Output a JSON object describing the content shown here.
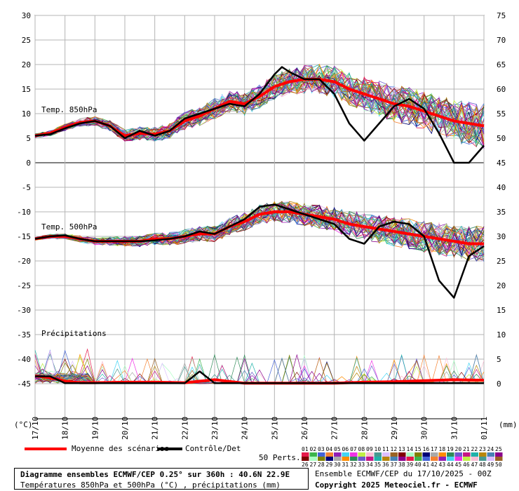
{
  "chart_data": {
    "type": "line",
    "left_axis": {
      "ticks": [
        "30",
        "25",
        "20",
        "15",
        "10",
        "5",
        "0",
        "-5",
        "-10",
        "-15",
        "-20",
        "-25",
        "-30",
        "-35",
        "-40",
        "-45"
      ],
      "unit": "(°C)"
    },
    "right_axis": {
      "ticks": [
        "75",
        "70",
        "65",
        "60",
        "55",
        "50",
        "45",
        "40",
        "35",
        "30",
        "25",
        "20",
        "15",
        "10",
        "5",
        "0"
      ],
      "unit": "(mm)"
    },
    "x_labels": [
      "17/10",
      "18/10",
      "19/10",
      "20/10",
      "21/10",
      "22/10",
      "23/10",
      "24/10",
      "25/10",
      "26/10",
      "27/10",
      "28/10",
      "29/10",
      "30/10",
      "31/10",
      "01/11"
    ],
    "x_days": [
      0,
      1,
      2,
      3,
      4,
      5,
      6,
      7,
      8,
      9,
      10,
      11,
      12,
      13,
      14,
      15
    ],
    "panel_labels": {
      "t850": "Temp. 850hPa",
      "t500": "Temp. 500hPa",
      "precip": "Précipitations"
    },
    "legend": {
      "mean": "Moyenne des scénarios",
      "control": "Contrôle/Det",
      "perts": "50 Perts."
    },
    "pert_numbers_top": [
      "01",
      "02",
      "03",
      "04",
      "05",
      "06",
      "07",
      "08",
      "09",
      "10",
      "11",
      "12",
      "13",
      "14",
      "15",
      "16",
      "17",
      "18",
      "19",
      "20",
      "21",
      "22",
      "23",
      "24",
      "25"
    ],
    "pert_numbers_bottom": [
      "26",
      "27",
      "28",
      "29",
      "30",
      "31",
      "32",
      "33",
      "34",
      "35",
      "36",
      "37",
      "38",
      "39",
      "40",
      "41",
      "42",
      "43",
      "44",
      "45",
      "46",
      "47",
      "48",
      "49",
      "50"
    ],
    "series": [
      {
        "name": "Moyenne des scénarios",
        "panel": "t850",
        "x": [
          0,
          0.5,
          1,
          1.5,
          2,
          2.5,
          3,
          3.5,
          4,
          4.5,
          5,
          5.5,
          6,
          6.5,
          7,
          7.5,
          8,
          8.5,
          9,
          9.5,
          10,
          10.5,
          11,
          11.5,
          12,
          12.5,
          13,
          13.5,
          14,
          14.5,
          15
        ],
        "values": [
          5.5,
          6,
          7.2,
          8.2,
          8.5,
          7.5,
          5.5,
          6,
          5.8,
          6.5,
          8.5,
          9.5,
          11,
          12.5,
          12,
          13.5,
          15.5,
          16.5,
          17,
          17,
          16.5,
          15,
          14,
          13,
          12,
          11.5,
          10.5,
          9.5,
          8.5,
          8,
          7.5
        ]
      },
      {
        "name": "Contrôle/Det",
        "panel": "t850",
        "x": [
          0,
          0.5,
          1,
          1.5,
          2,
          2.5,
          3,
          3.5,
          4,
          4.5,
          5,
          5.5,
          6,
          6.5,
          7,
          7.5,
          8,
          8.25,
          8.5,
          9,
          9.5,
          10,
          10.5,
          11,
          11.5,
          12,
          12.5,
          13,
          13.5,
          14,
          14.5,
          15
        ],
        "values": [
          5.5,
          5.8,
          7,
          8,
          8.5,
          7.5,
          5,
          6.5,
          5.5,
          6.5,
          9,
          10,
          11,
          12,
          11.5,
          14,
          18,
          19.5,
          18.5,
          17,
          17,
          14,
          8,
          4.5,
          8,
          11.5,
          13,
          11,
          6,
          0,
          0,
          3.5
        ]
      },
      {
        "name": "Moyenne des scénarios",
        "panel": "t500",
        "x": [
          0,
          0.5,
          1,
          1.5,
          2,
          2.5,
          3,
          3.5,
          4,
          4.5,
          5,
          5.5,
          6,
          6.5,
          7,
          7.5,
          8,
          8.5,
          9,
          9.5,
          10,
          10.5,
          11,
          11.5,
          12,
          12.5,
          13,
          13.5,
          14,
          14.5,
          15
        ],
        "values": [
          -15.5,
          -15,
          -15,
          -15.5,
          -16,
          -16,
          -16,
          -16,
          -15.5,
          -15.5,
          -15,
          -14.5,
          -14.5,
          -13,
          -12,
          -10.5,
          -10,
          -10,
          -10.5,
          -11,
          -11.5,
          -12.5,
          -13,
          -13.5,
          -14,
          -14.5,
          -15,
          -15.5,
          -16,
          -16.5,
          -16.5
        ]
      },
      {
        "name": "Contrôle/Det",
        "panel": "t500",
        "x": [
          0,
          0.5,
          1,
          1.5,
          2,
          2.5,
          3,
          3.5,
          4,
          4.5,
          5,
          5.5,
          6,
          6.5,
          7,
          7.5,
          8,
          8.5,
          9,
          9.5,
          10,
          10.5,
          11,
          11.5,
          12,
          12.5,
          13,
          13.5,
          14,
          14.5,
          15
        ],
        "values": [
          -15.5,
          -15,
          -14.8,
          -15.5,
          -16,
          -16,
          -16,
          -16,
          -15.8,
          -15.5,
          -15,
          -14,
          -14.5,
          -13,
          -11.5,
          -9,
          -8.5,
          -9.5,
          -10.5,
          -11.5,
          -12.5,
          -15.5,
          -16.5,
          -13,
          -12,
          -12.5,
          -15,
          -24,
          -27.5,
          -19,
          -17
        ]
      },
      {
        "name": "Moyenne des scénarios",
        "panel": "precip",
        "x": [
          0,
          0.5,
          1,
          1.5,
          2,
          3,
          4,
          5,
          6,
          7,
          8,
          9,
          10,
          11,
          12,
          13,
          14,
          15
        ],
        "values_mm": [
          1.6,
          1.2,
          0.5,
          0.2,
          0.2,
          0.3,
          0.3,
          0.2,
          0.8,
          0.1,
          0.1,
          0.1,
          0.1,
          0.3,
          0.4,
          0.6,
          0.8,
          0.7
        ]
      },
      {
        "name": "Contrôle/Det",
        "panel": "precip",
        "x": [
          0,
          0.5,
          1,
          1.5,
          2,
          3,
          4,
          5,
          5.5,
          6,
          7,
          8,
          9,
          10,
          11,
          12,
          13,
          14,
          15
        ],
        "values_mm": [
          1.5,
          1.5,
          0.1,
          0.1,
          0.1,
          0.1,
          0.1,
          0.1,
          2.5,
          0.1,
          0.1,
          0.1,
          0.1,
          0.1,
          0.1,
          0.1,
          0.1,
          0.1,
          0.1
        ]
      }
    ],
    "grid": true
  },
  "footer": {
    "title": "Diagramme ensembles ECMWF/CEP 0.25° sur 360h : 40.6N 22.9E",
    "subtitle": "Températures 850hPa et 500hPa (°C) , précipitations (mm)",
    "run": "Ensemble ECMWF/CEP du 17/10/2025 - 00Z",
    "copyright": "Copyright 2025 Meteociel.fr - ECMWF"
  },
  "colors": {
    "mean": "#ff0000",
    "control": "#000000",
    "grid": "#b4b4b4",
    "zero_line": "#808080"
  }
}
